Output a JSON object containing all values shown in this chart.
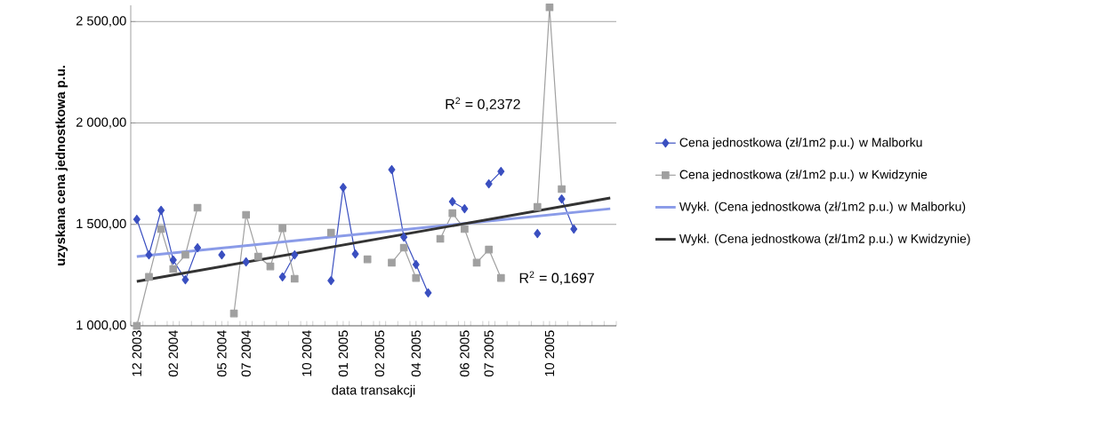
{
  "chart_data": {
    "type": "line",
    "ylabel": "uzyskana cena jednostkowa p.u.",
    "xlabel": "data transakcji",
    "categories": [
      "12 2003",
      null,
      null,
      "02 2004",
      null,
      null,
      null,
      "05 2004",
      null,
      "07 2004",
      null,
      null,
      null,
      null,
      "10 2004",
      null,
      null,
      "01 2005",
      null,
      null,
      "02 2005",
      null,
      null,
      "04 2005",
      null,
      null,
      null,
      "06 2005",
      null,
      "07 2005",
      null,
      null,
      null,
      null,
      "10 2005",
      null,
      null,
      null,
      null,
      null
    ],
    "series": [
      {
        "name": "Cena jednostkowa (zł/1m2 p.u.) w Malborku",
        "color": "#3a4fc0",
        "marker": "diamond",
        "values": [
          1525,
          1350,
          1569,
          1324,
          1227,
          1385,
          null,
          1350,
          null,
          1315,
          null,
          null,
          1241,
          1350,
          null,
          null,
          1223,
          1682,
          1354,
          null,
          null,
          1770,
          1437,
          1302,
          1162,
          null,
          1612,
          1577,
          null,
          1700,
          1761,
          null,
          null,
          1455,
          null,
          1625,
          1477,
          null,
          null,
          null
        ]
      },
      {
        "name": "Cena jednostkowa (zł/1m2 p.u.) w Kwidzynie",
        "color": "#a0a0a0",
        "marker": "square",
        "values": [
          1000,
          1241,
          1477,
          1280,
          1350,
          1582,
          null,
          null,
          1061,
          1547,
          1341,
          1293,
          1481,
          1232,
          null,
          null,
          1459,
          null,
          null,
          1328,
          null,
          1311,
          1385,
          1236,
          null,
          1429,
          1555,
          1477,
          1311,
          1376,
          1236,
          null,
          null,
          1586,
          2570,
          1674,
          null,
          null,
          null,
          null
        ]
      },
      {
        "name": "Wykł. (Cena jednostkowa (zł/1m2 p.u.) w Malborku)",
        "color": "#8a9be8",
        "marker": "none",
        "values": [
          1341,
          null,
          null,
          null,
          null,
          null,
          null,
          null,
          null,
          null,
          null,
          null,
          null,
          null,
          null,
          null,
          null,
          null,
          null,
          null,
          null,
          null,
          null,
          null,
          null,
          null,
          null,
          null,
          null,
          null,
          null,
          null,
          null,
          null,
          null,
          null,
          null,
          null,
          null,
          1577
        ]
      },
      {
        "name": "Wykł. (Cena jednostkowa (zł/1m2 p.u.) w Kwidzynie)",
        "color": "#333333",
        "marker": "none",
        "values": [
          1219,
          null,
          null,
          null,
          null,
          null,
          null,
          null,
          null,
          null,
          null,
          null,
          null,
          null,
          null,
          null,
          null,
          null,
          null,
          null,
          null,
          null,
          null,
          null,
          null,
          null,
          null,
          null,
          null,
          null,
          null,
          null,
          null,
          null,
          null,
          null,
          null,
          null,
          null,
          1630
        ]
      }
    ],
    "ylim": [
      1000,
      2580
    ],
    "yticks": [
      {
        "value": 1000,
        "label": "1 000,00"
      },
      {
        "value": 1500,
        "label": "1 500,00"
      },
      {
        "value": 2000,
        "label": "2 000,00"
      },
      {
        "value": 2500,
        "label": "2 500,00"
      }
    ],
    "grid": "y",
    "legend": "right",
    "annotations": [
      "R$^{2}$ = 0,2372",
      "R$^{2}$ = 0,1697"
    ]
  }
}
